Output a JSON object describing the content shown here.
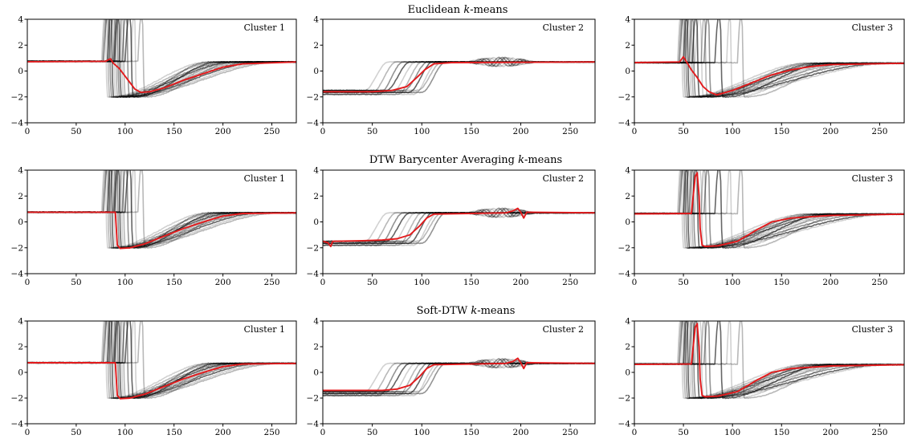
{
  "figure": {
    "rows": [
      {
        "title_pre": "Euclidean ",
        "title_k": "k",
        "title_post": "-means"
      },
      {
        "title_pre": "DTW Barycenter Averaging ",
        "title_k": "k",
        "title_post": "-means"
      },
      {
        "title_pre": "Soft-DTW ",
        "title_k": "k",
        "title_post": "-means"
      }
    ],
    "cluster_labels": [
      "Cluster 1",
      "Cluster 2",
      "Cluster 3"
    ],
    "colors": {
      "members": "#000000",
      "member_opacities": [
        0.18,
        0.28,
        0.42,
        0.6
      ],
      "center": "#e31a1c"
    }
  },
  "chart_data": {
    "type": "line",
    "grid": false,
    "xlim": [
      0,
      275
    ],
    "ylim": [
      -4,
      4
    ],
    "x_ticks": [
      0,
      50,
      100,
      150,
      200,
      250
    ],
    "y_ticks": [
      -4,
      -2,
      0,
      2,
      4
    ],
    "clusters": [
      {
        "name": "Cluster 1",
        "level_start": 0.75,
        "level_low": -2.0,
        "level_end": 0.7,
        "spike": true,
        "member_drops": [
          82,
          84,
          86,
          88,
          90,
          92,
          94,
          96,
          98,
          100,
          104,
          108,
          112,
          120
        ],
        "member_recovery_end": [
          185,
          195,
          205,
          212,
          218,
          225,
          232,
          240,
          250,
          258
        ]
      },
      {
        "name": "Cluster 2",
        "level_start": -1.5,
        "level_low": -1.9,
        "level_end": 0.7,
        "spike": false,
        "member_rises": [
          50,
          58,
          65,
          72,
          78,
          84,
          90,
          95,
          100,
          104,
          108
        ],
        "wiggle_range": [
          145,
          215
        ]
      },
      {
        "name": "Cluster 3",
        "level_start": 0.65,
        "level_low": -2.0,
        "level_end": 0.6,
        "spike": true,
        "member_drops": [
          50,
          52,
          54,
          56,
          58,
          60,
          62,
          66,
          70,
          74,
          78,
          90,
          100,
          112
        ],
        "member_recovery_end": [
          175,
          185,
          195,
          205,
          215,
          225,
          240,
          255,
          265
        ]
      }
    ],
    "centroids": {
      "euclidean": {
        "cluster_1": [
          [
            0,
            0.72
          ],
          [
            80,
            0.75
          ],
          [
            85,
            0.95
          ],
          [
            88,
            0.6
          ],
          [
            94,
            0.2
          ],
          [
            100,
            -0.4
          ],
          [
            105,
            -0.9
          ],
          [
            110,
            -1.4
          ],
          [
            116,
            -1.65
          ],
          [
            125,
            -1.6
          ],
          [
            140,
            -1.3
          ],
          [
            160,
            -0.7
          ],
          [
            180,
            -0.2
          ],
          [
            200,
            0.3
          ],
          [
            220,
            0.55
          ],
          [
            275,
            0.7
          ]
        ],
        "cluster_2": [
          [
            0,
            -1.6
          ],
          [
            50,
            -1.6
          ],
          [
            70,
            -1.5
          ],
          [
            85,
            -1.2
          ],
          [
            95,
            -0.5
          ],
          [
            103,
            0.1
          ],
          [
            112,
            0.55
          ],
          [
            130,
            0.65
          ],
          [
            275,
            0.7
          ]
        ],
        "cluster_3": [
          [
            0,
            0.65
          ],
          [
            46,
            0.7
          ],
          [
            50,
            1.1
          ],
          [
            54,
            0.6
          ],
          [
            58,
            0.1
          ],
          [
            64,
            -0.5
          ],
          [
            70,
            -1.2
          ],
          [
            76,
            -1.6
          ],
          [
            84,
            -1.85
          ],
          [
            100,
            -1.5
          ],
          [
            120,
            -0.9
          ],
          [
            140,
            -0.3
          ],
          [
            160,
            0.1
          ],
          [
            180,
            0.35
          ],
          [
            200,
            0.5
          ],
          [
            275,
            0.6
          ]
        ]
      },
      "dba": {
        "cluster_1": [
          [
            0,
            0.75
          ],
          [
            90,
            0.75
          ],
          [
            92,
            -1.8
          ],
          [
            95,
            -2.05
          ],
          [
            105,
            -2.0
          ],
          [
            120,
            -1.7
          ],
          [
            140,
            -1.1
          ],
          [
            160,
            -0.5
          ],
          [
            180,
            0.0
          ],
          [
            200,
            0.45
          ],
          [
            220,
            0.65
          ],
          [
            275,
            0.7
          ]
        ],
        "cluster_2": [
          [
            0,
            -1.5
          ],
          [
            5,
            -1.6
          ],
          [
            8,
            -1.9
          ],
          [
            10,
            -1.5
          ],
          [
            40,
            -1.45
          ],
          [
            60,
            -1.4
          ],
          [
            75,
            -1.3
          ],
          [
            88,
            -1.0
          ],
          [
            98,
            -0.3
          ],
          [
            105,
            0.3
          ],
          [
            112,
            0.6
          ],
          [
            185,
            0.7
          ],
          [
            192,
            0.85
          ],
          [
            197,
            1.05
          ],
          [
            200,
            0.75
          ],
          [
            203,
            0.3
          ],
          [
            206,
            0.75
          ],
          [
            275,
            0.7
          ]
        ],
        "cluster_3": [
          [
            0,
            0.62
          ],
          [
            58,
            0.65
          ],
          [
            60,
            2.0
          ],
          [
            62,
            3.5
          ],
          [
            64,
            3.8
          ],
          [
            66,
            2.0
          ],
          [
            67,
            -0.5
          ],
          [
            69,
            -1.8
          ],
          [
            72,
            -1.9
          ],
          [
            85,
            -1.85
          ],
          [
            105,
            -1.5
          ],
          [
            125,
            -0.6
          ],
          [
            140,
            0.0
          ],
          [
            160,
            0.3
          ],
          [
            200,
            0.5
          ],
          [
            275,
            0.6
          ]
        ]
      },
      "softdtw": {
        "cluster_1": [
          [
            0,
            0.75
          ],
          [
            90,
            0.75
          ],
          [
            92,
            -1.8
          ],
          [
            95,
            -2.05
          ],
          [
            105,
            -2.0
          ],
          [
            120,
            -1.7
          ],
          [
            140,
            -1.1
          ],
          [
            160,
            -0.5
          ],
          [
            180,
            0.0
          ],
          [
            200,
            0.45
          ],
          [
            220,
            0.65
          ],
          [
            275,
            0.7
          ]
        ],
        "cluster_2": [
          [
            0,
            -1.4
          ],
          [
            40,
            -1.4
          ],
          [
            60,
            -1.4
          ],
          [
            75,
            -1.3
          ],
          [
            88,
            -1.0
          ],
          [
            98,
            -0.3
          ],
          [
            105,
            0.3
          ],
          [
            112,
            0.6
          ],
          [
            185,
            0.7
          ],
          [
            192,
            0.85
          ],
          [
            197,
            1.1
          ],
          [
            200,
            0.75
          ],
          [
            203,
            0.3
          ],
          [
            206,
            0.75
          ],
          [
            275,
            0.7
          ]
        ],
        "cluster_3": [
          [
            0,
            0.62
          ],
          [
            58,
            0.65
          ],
          [
            60,
            2.0
          ],
          [
            62,
            3.5
          ],
          [
            64,
            3.8
          ],
          [
            66,
            2.0
          ],
          [
            67,
            -0.5
          ],
          [
            69,
            -1.8
          ],
          [
            72,
            -1.9
          ],
          [
            85,
            -1.85
          ],
          [
            105,
            -1.5
          ],
          [
            125,
            -0.6
          ],
          [
            140,
            0.0
          ],
          [
            160,
            0.3
          ],
          [
            200,
            0.5
          ],
          [
            275,
            0.6
          ]
        ]
      }
    }
  }
}
